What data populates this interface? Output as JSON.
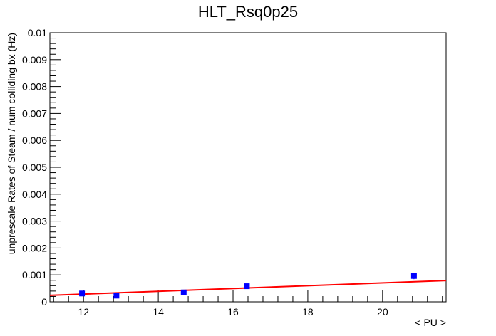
{
  "chart_data": {
    "type": "scatter",
    "title": "HLT_Rsq0p25",
    "xlabel": "< PU >",
    "ylabel": "unprescale Rates of Steam / num colliding bx (Hz)",
    "xlim": [
      11.1,
      21.7
    ],
    "ylim": [
      0,
      0.01
    ],
    "x_ticks": [
      12,
      14,
      16,
      18,
      20
    ],
    "x_tick_labels": [
      "12",
      "14",
      "16",
      "18",
      "20"
    ],
    "y_ticks": [
      0,
      0.001,
      0.002,
      0.003,
      0.004,
      0.005,
      0.006,
      0.007,
      0.008,
      0.009,
      0.01
    ],
    "y_tick_labels": [
      "0",
      "0.001",
      "0.002",
      "0.003",
      "0.004",
      "0.005",
      "0.006",
      "0.007",
      "0.008",
      "0.009",
      "0.01"
    ],
    "grid": false,
    "series": [
      {
        "type": "scatter",
        "color": "#0000ff",
        "points": [
          {
            "x": 11.96,
            "y": 0.00031,
            "err": 3e-05
          },
          {
            "x": 12.88,
            "y": 0.00023,
            "err": 3e-05
          },
          {
            "x": 14.68,
            "y": 0.00035,
            "err": 4e-05
          },
          {
            "x": 16.37,
            "y": 0.00058,
            "err": 5e-05
          },
          {
            "x": 20.84,
            "y": 0.00096,
            "err": 0.00012
          }
        ]
      },
      {
        "type": "line",
        "color": "#ff0000",
        "x": [
          11.1,
          21.7
        ],
        "y": [
          0.00024,
          0.00079
        ]
      }
    ]
  }
}
